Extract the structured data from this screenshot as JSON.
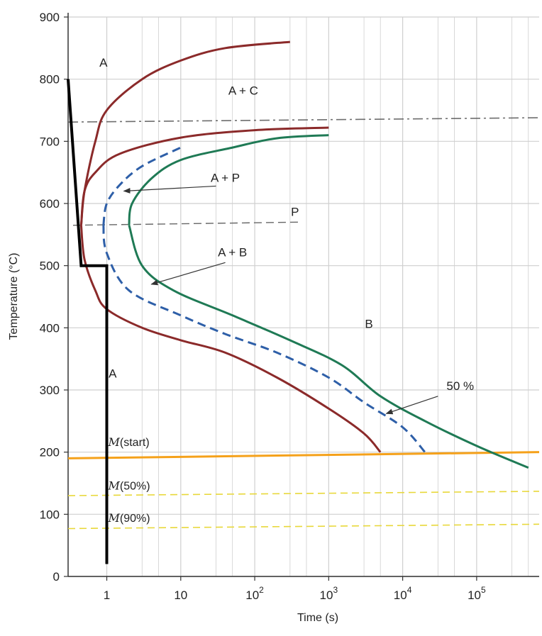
{
  "chart_data": {
    "type": "line",
    "title": "",
    "xlabel": "Time (s)",
    "ylabel": "Temperature (°C)",
    "xscale": "log",
    "xlim": [
      0.3,
      700000
    ],
    "ylim": [
      0,
      900
    ],
    "grid": true,
    "x_ticks": [
      {
        "base": "1",
        "exp": "",
        "value": 1
      },
      {
        "base": "10",
        "exp": "",
        "value": 10
      },
      {
        "base": "10",
        "exp": "2",
        "value": 100
      },
      {
        "base": "10",
        "exp": "3",
        "value": 1000
      },
      {
        "base": "10",
        "exp": "4",
        "value": 10000
      },
      {
        "base": "10",
        "exp": "5",
        "value": 100000
      }
    ],
    "y_ticks": [
      "0",
      "100",
      "200",
      "300",
      "400",
      "500",
      "600",
      "700",
      "800",
      "900"
    ],
    "colors": {
      "start_curve": "#8b2a2a",
      "fifty_curve": "#2e5fa8",
      "finish_curve": "#1f7a55",
      "cooling_path": "#000000",
      "ms_line": "#f5a11a",
      "m50_line": "#e8d83a",
      "m90_line": "#e8d83a",
      "eutectoid_line": "#555555",
      "grid": "#cfcfcf"
    },
    "curves": [
      {
        "id": "start-upper",
        "style": "solid",
        "color_key": "start_curve",
        "points": [
          [
            0.45,
            565
          ],
          [
            0.5,
            620
          ],
          [
            0.7,
            700
          ],
          [
            1,
            750
          ],
          [
            3,
            800
          ],
          [
            10,
            830
          ],
          [
            40,
            850
          ],
          [
            300,
            860
          ]
        ]
      },
      {
        "id": "start-nose",
        "style": "solid",
        "color_key": "start_curve",
        "points": [
          [
            0.45,
            565
          ],
          [
            0.5,
            620
          ],
          [
            0.7,
            650
          ],
          [
            1.5,
            680
          ],
          [
            10,
            706
          ],
          [
            100,
            718
          ],
          [
            1000,
            722
          ]
        ]
      },
      {
        "id": "start-lower",
        "style": "solid",
        "color_key": "start_curve",
        "points": [
          [
            0.45,
            565
          ],
          [
            0.5,
            510
          ],
          [
            0.7,
            460
          ],
          [
            1,
            430
          ],
          [
            3,
            400
          ],
          [
            10,
            380
          ],
          [
            40,
            360
          ],
          [
            200,
            320
          ],
          [
            1000,
            270
          ],
          [
            3000,
            230
          ],
          [
            5000,
            200
          ]
        ]
      },
      {
        "id": "fifty-upper",
        "style": "dashed",
        "color_key": "fifty_curve",
        "points": [
          [
            0.9,
            565
          ],
          [
            1,
            600
          ],
          [
            1.5,
            630
          ],
          [
            3,
            660
          ],
          [
            10,
            690
          ]
        ]
      },
      {
        "id": "fifty-lower",
        "style": "dashed",
        "color_key": "fifty_curve",
        "points": [
          [
            0.9,
            565
          ],
          [
            1,
            520
          ],
          [
            2,
            460
          ],
          [
            10,
            420
          ],
          [
            40,
            390
          ],
          [
            200,
            360
          ],
          [
            1000,
            320
          ],
          [
            3000,
            280
          ],
          [
            10000,
            240
          ],
          [
            20000,
            200
          ]
        ]
      },
      {
        "id": "finish-upper",
        "style": "solid",
        "color_key": "finish_curve",
        "points": [
          [
            2,
            565
          ],
          [
            2.2,
            600
          ],
          [
            4,
            640
          ],
          [
            10,
            670
          ],
          [
            50,
            690
          ],
          [
            200,
            705
          ],
          [
            1000,
            710
          ]
        ]
      },
      {
        "id": "finish-lower",
        "style": "solid",
        "color_key": "finish_curve",
        "points": [
          [
            2,
            565
          ],
          [
            3,
            500
          ],
          [
            8,
            460
          ],
          [
            50,
            420
          ],
          [
            300,
            380
          ],
          [
            1500,
            340
          ],
          [
            5000,
            290
          ],
          [
            20000,
            250
          ],
          [
            100000,
            210
          ],
          [
            500000,
            175
          ]
        ]
      }
    ],
    "cooling_path": [
      [
        0.3,
        800
      ],
      [
        0.45,
        500
      ],
      [
        1,
        500
      ],
      [
        1,
        20
      ]
    ],
    "horizontal_lines": [
      {
        "id": "eutectoid",
        "style": "dashdot",
        "color_key": "eutectoid_line",
        "y": [
          731,
          738
        ]
      },
      {
        "id": "ms",
        "style": "solid",
        "color_key": "ms_line",
        "y": [
          190,
          200
        ]
      },
      {
        "id": "m50",
        "style": "dashed",
        "color_key": "m50_line",
        "y": [
          130,
          137
        ]
      },
      {
        "id": "m90",
        "style": "dashed",
        "color_key": "m90_line",
        "y": [
          77,
          84
        ]
      }
    ],
    "p_line": {
      "x_start": 0.35,
      "x_end": 400,
      "y": [
        565,
        570
      ]
    },
    "region_labels": [
      {
        "id": "a-top",
        "text": "A",
        "x": 0.9,
        "y": 820
      },
      {
        "id": "a-plus-c",
        "text": "A + C",
        "x": 70,
        "y": 775
      },
      {
        "id": "a-plus-p",
        "text": "A + P",
        "x": 40,
        "y": 635
      },
      {
        "id": "p",
        "text": "P",
        "x": 350,
        "y": 580
      },
      {
        "id": "a-plus-b",
        "text": "A + B",
        "x": 50,
        "y": 515
      },
      {
        "id": "b",
        "text": "B",
        "x": 3500,
        "y": 400
      },
      {
        "id": "a-low",
        "text": "A",
        "x": 1.2,
        "y": 320
      },
      {
        "id": "fifty-pct",
        "text": "50 %",
        "x": 60000,
        "y": 300
      }
    ],
    "arrows": [
      {
        "id": "arrow-a-plus-p",
        "from": [
          30,
          628
        ],
        "to": [
          1.7,
          620
        ]
      },
      {
        "id": "arrow-a-plus-b",
        "from": [
          40,
          505
        ],
        "to": [
          4,
          470
        ]
      },
      {
        "id": "arrow-fifty",
        "from": [
          30000,
          290
        ],
        "to": [
          6000,
          262
        ]
      }
    ],
    "m_labels": [
      {
        "id": "m-start",
        "prefix": "M",
        "suffix": "(start)",
        "x": 1,
        "y": 210
      },
      {
        "id": "m-50",
        "prefix": "M",
        "suffix": "(50%)",
        "x": 1,
        "y": 140
      },
      {
        "id": "m-90",
        "prefix": "M",
        "suffix": "(90%)",
        "x": 1,
        "y": 88
      }
    ]
  }
}
